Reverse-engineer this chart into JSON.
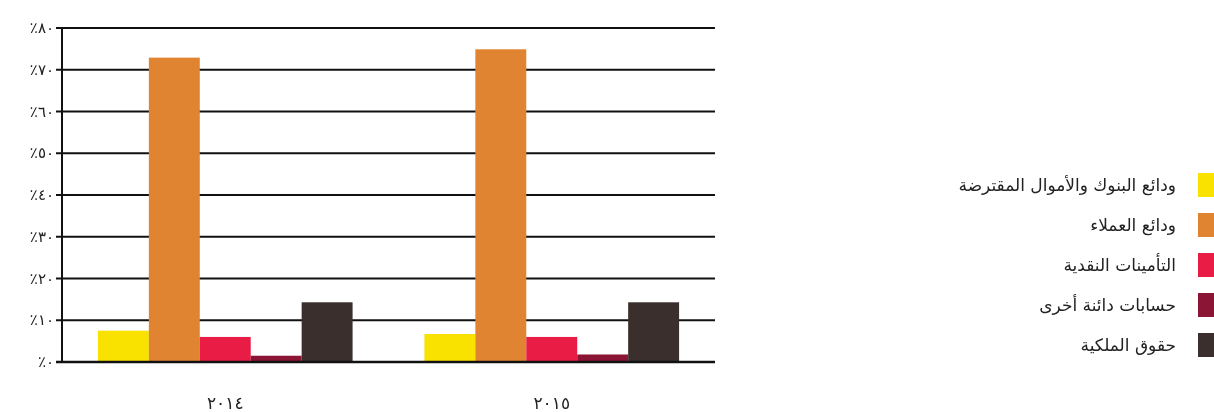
{
  "chart_data": {
    "type": "bar",
    "categories": [
      "٢٠١٤",
      "٢٠١٥"
    ],
    "series": [
      {
        "name": "ودائع البنوك والأموال المقترضة",
        "color": "#f9e100",
        "values": [
          7.5,
          6.7
        ]
      },
      {
        "name": "ودائع العملاء",
        "color": "#e08431",
        "values": [
          72.9,
          74.9
        ]
      },
      {
        "name": "التأمينات النقدية",
        "color": "#e81c44",
        "values": [
          6.0,
          6.0
        ]
      },
      {
        "name": "حسابات دائنة أخرى",
        "color": "#8b1535",
        "values": [
          1.5,
          1.8
        ]
      },
      {
        "name": "حقوق الملكية",
        "color": "#3a2f2c",
        "values": [
          14.3,
          14.3
        ]
      }
    ],
    "ylim": [
      0,
      80
    ],
    "yticks": [
      {
        "value": 0,
        "label": "٪٠"
      },
      {
        "value": 10,
        "label": "٪١٠"
      },
      {
        "value": 20,
        "label": "٪٢٠"
      },
      {
        "value": 30,
        "label": "٪٣٠"
      },
      {
        "value": 40,
        "label": "٪٤٠"
      },
      {
        "value": 50,
        "label": "٪٥٠"
      },
      {
        "value": 60,
        "label": "٪٦٠"
      },
      {
        "value": 70,
        "label": "٪٧٠"
      },
      {
        "value": 80,
        "label": "٪٨٠"
      }
    ],
    "grid": "y",
    "legend": "right"
  }
}
